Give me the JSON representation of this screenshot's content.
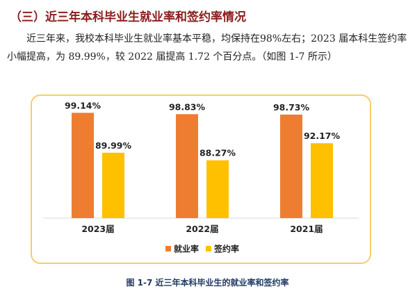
{
  "section": {
    "heading": "（三）近三年本科毕业生就业率和签约率情况",
    "paragraph": "近三年来，我校本科毕业生就业率基本平稳，均保持在98%左右；2023 届本科生签约率小幅提高，为 89.99%，较 2022 届提高 1.72 个百分点。（如图 1-7 所示）"
  },
  "figure": {
    "caption": "图 1-7   近三年本科毕业生的就业率和签约率"
  },
  "colors": {
    "employment": "#ee7d31",
    "signing": "#ffc000",
    "frame": "#f6cd6a",
    "heading": "#8a1c1c",
    "caption": "#1f3864"
  },
  "chart_data": {
    "type": "bar",
    "categories": [
      "2023届",
      "2022届",
      "2021届"
    ],
    "series": [
      {
        "name": "就业率",
        "values": [
          99.14,
          98.83,
          98.73
        ],
        "labels": [
          "99.14%",
          "98.83%",
          "98.73%"
        ]
      },
      {
        "name": "签约率",
        "values": [
          89.99,
          88.27,
          92.17
        ],
        "labels": [
          "89.99%",
          "88.27%",
          "92.17%"
        ]
      }
    ],
    "ylim": [
      75,
      100
    ],
    "grid": false,
    "legend": "bottom"
  }
}
